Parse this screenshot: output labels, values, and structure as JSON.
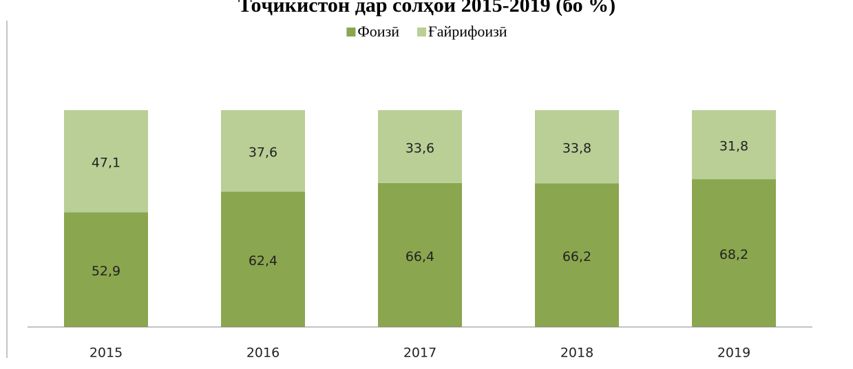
{
  "chart_data": {
    "type": "stacked_bar",
    "title": "Тоҷикистон дар солҳои 2015-2019 (бо %)",
    "categories": [
      "2015",
      "2016",
      "2017",
      "2018",
      "2019"
    ],
    "series": [
      {
        "name": "Фоизӣ",
        "color": "#8aa64e",
        "values": [
          52.9,
          62.4,
          66.4,
          66.2,
          68.2
        ],
        "value_labels": [
          "52,9",
          "62,4",
          "66,4",
          "66,2",
          "68,2"
        ]
      },
      {
        "name": "Ғайрифоизӣ",
        "color": "#b9cf96",
        "values": [
          47.1,
          37.6,
          33.6,
          33.8,
          31.8
        ],
        "value_labels": [
          "47,1",
          "37,6",
          "33,6",
          "33,8",
          "31,8"
        ]
      }
    ],
    "ylim": [
      0,
      100
    ],
    "legend": "top"
  }
}
